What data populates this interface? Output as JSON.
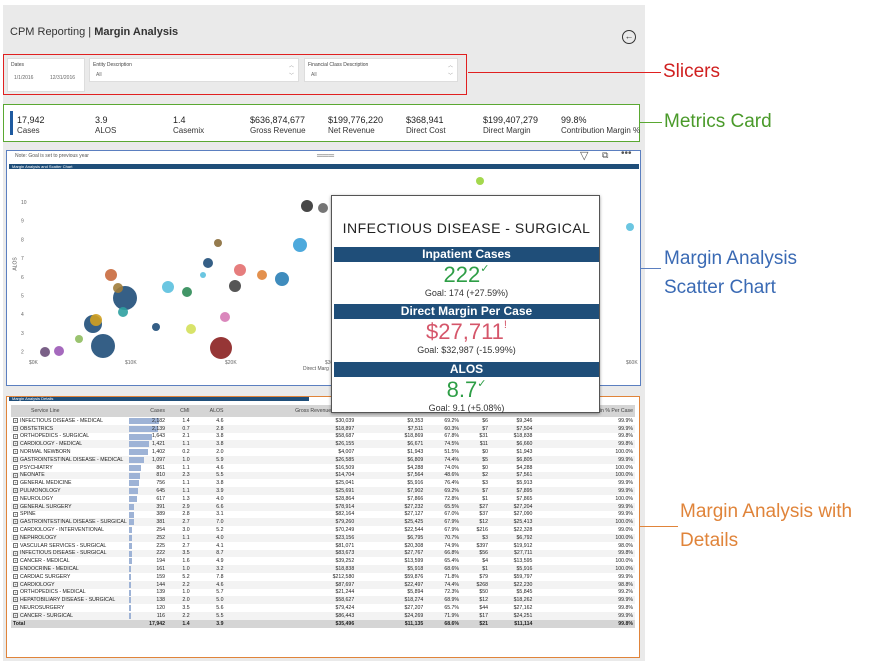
{
  "header": {
    "app": "CPM Reporting",
    "separator": "|",
    "page": "Margin Analysis"
  },
  "slicers": {
    "dates": {
      "title": "Dates",
      "start": "1/1/2016",
      "end": "12/31/2016"
    },
    "entity": {
      "title": "Entity Description",
      "value": "All"
    },
    "financial_class": {
      "title": "Financial Class Description",
      "value": "All"
    }
  },
  "metrics": [
    {
      "value": "17,942",
      "label": "Cases"
    },
    {
      "value": "3.9",
      "label": "ALOS"
    },
    {
      "value": "1.4",
      "label": "Casemix"
    },
    {
      "value": "$636,874,677",
      "label": "Gross Revenue"
    },
    {
      "value": "$199,776,220",
      "label": "Net Revenue"
    },
    {
      "value": "$368,941",
      "label": "Direct Cost"
    },
    {
      "value": "$199,407,279",
      "label": "Direct Margin"
    },
    {
      "value": "99.8%",
      "label": "Contribution Margin %"
    }
  ],
  "annotations": {
    "slicers": "Slicers",
    "metrics": "Metrics Card",
    "scatter_line1": "Margin Analysis",
    "scatter_line2": "Scatter Chart",
    "details_line1": "Margin Analysis with",
    "details_line2": "Details"
  },
  "scatter": {
    "note": "Note: Goal is set to previous year",
    "tab": "Margin Analysis and Scatter Chart",
    "xlabel": "Direct Marg",
    "xticks": [
      "$0K",
      "$10K",
      "$20K",
      "$30K",
      "$60K"
    ],
    "yticks": [
      "10",
      "9",
      "8",
      "7",
      "6",
      "5",
      "4",
      "3",
      "2"
    ],
    "ylabel": "ALOS"
  },
  "tooltip": {
    "title": "INFECTIOUS DISEASE - SURGICAL",
    "sections": [
      {
        "label": "Inpatient Cases",
        "value": "222",
        "mark": "✓",
        "goal": "Goal: 174 (+27.59%)",
        "color": "#2e9e46"
      },
      {
        "label": "Direct Margin Per Case",
        "value": "$27,711",
        "mark": "!",
        "goal": "Goal: $32,987 (-15.99%)",
        "color": "#d5566a"
      },
      {
        "label": "ALOS",
        "value": "8.7",
        "mark": "✓",
        "goal": "Goal: 9.1 (+5.08%)",
        "color": "#2e9e46"
      }
    ]
  },
  "details": {
    "tab": "Margin Analysis Details",
    "columns": [
      "Service Line",
      "Cases",
      "CMI",
      "ALOS",
      "Gross Revenue Per Case",
      "Net Revenue",
      "",
      "",
      "",
      "Margin % Per Case"
    ],
    "rows": [
      [
        "INFECTIOUS DISEASE - MEDICAL",
        "2,182",
        "1.4",
        "4.6",
        "$30,039",
        "$9,353",
        "69.2%",
        "$6",
        "$9,346",
        "99.9%"
      ],
      [
        "OBSTETRICS",
        "2,139",
        "0.7",
        "2.8",
        "$18,897",
        "$7,511",
        "60.3%",
        "$7",
        "$7,504",
        "99.9%"
      ],
      [
        "ORTHOPEDICS - SURGICAL",
        "1,643",
        "2.1",
        "3.8",
        "$58,687",
        "$18,869",
        "67.8%",
        "$31",
        "$18,838",
        "99.8%"
      ],
      [
        "CARDIOLOGY - MEDICAL",
        "1,421",
        "1.1",
        "3.8",
        "$26,155",
        "$6,671",
        "74.5%",
        "$11",
        "$6,660",
        "99.8%"
      ],
      [
        "NORMAL NEWBORN",
        "1,402",
        "0.2",
        "2.0",
        "$4,007",
        "$1,943",
        "51.5%",
        "$0",
        "$1,943",
        "100.0%"
      ],
      [
        "GASTROINTESTINAL DISEASE - MEDICAL",
        "1,097",
        "1.0",
        "5.9",
        "$26,585",
        "$6,809",
        "74.4%",
        "$5",
        "$6,805",
        "99.9%"
      ],
      [
        "PSYCHIATRY",
        "861",
        "1.1",
        "4.6",
        "$16,509",
        "$4,288",
        "74.0%",
        "$0",
        "$4,288",
        "100.0%"
      ],
      [
        "NEONATE",
        "810",
        "2.3",
        "5.5",
        "$14,704",
        "$7,564",
        "48.6%",
        "$2",
        "$7,561",
        "100.0%"
      ],
      [
        "GENERAL MEDICINE",
        "756",
        "1.1",
        "3.8",
        "$25,041",
        "$5,916",
        "76.4%",
        "$3",
        "$5,913",
        "99.9%"
      ],
      [
        "PULMONOLOGY",
        "645",
        "1.1",
        "3.9",
        "$25,691",
        "$7,902",
        "69.2%",
        "$7",
        "$7,895",
        "99.9%"
      ],
      [
        "NEUROLOGY",
        "617",
        "1.3",
        "4.0",
        "$28,864",
        "$7,866",
        "72.8%",
        "$1",
        "$7,865",
        "100.0%"
      ],
      [
        "GENERAL SURGERY",
        "391",
        "2.9",
        "6.6",
        "$78,914",
        "$27,232",
        "65.5%",
        "$27",
        "$27,204",
        "99.9%"
      ],
      [
        "SPINE",
        "389",
        "2.8",
        "3.1",
        "$82,164",
        "$27,127",
        "67.0%",
        "$37",
        "$27,090",
        "99.9%"
      ],
      [
        "GASTROINTESTINAL DISEASE - SURGICAL",
        "381",
        "2.7",
        "7.0",
        "$79,260",
        "$25,425",
        "67.9%",
        "$12",
        "$25,413",
        "100.0%"
      ],
      [
        "CARDIOLOGY - INTERVENTIONAL",
        "254",
        "3.0",
        "5.2",
        "$70,249",
        "$22,544",
        "67.9%",
        "$216",
        "$22,328",
        "99.0%"
      ],
      [
        "NEPHROLOGY",
        "252",
        "1.1",
        "4.0",
        "$23,156",
        "$6,795",
        "70.7%",
        "$3",
        "$6,792",
        "100.0%"
      ],
      [
        "VASCULAR SERVICES - SURGICAL",
        "225",
        "2.7",
        "4.1",
        "$81,071",
        "$20,308",
        "74.9%",
        "$397",
        "$19,912",
        "98.0%"
      ],
      [
        "INFECTIOUS DISEASE - SURGICAL",
        "222",
        "3.5",
        "8.7",
        "$83,673",
        "$27,767",
        "66.8%",
        "$56",
        "$27,711",
        "99.8%"
      ],
      [
        "CANCER - MEDICAL",
        "194",
        "1.6",
        "4.9",
        "$39,252",
        "$13,599",
        "65.4%",
        "$4",
        "$13,595",
        "100.0%"
      ],
      [
        "ENDOCRINE - MEDICAL",
        "161",
        "1.0",
        "3.2",
        "$18,838",
        "$5,918",
        "68.6%",
        "$1",
        "$5,916",
        "100.0%"
      ],
      [
        "CARDIAC SURGERY",
        "159",
        "5.2",
        "7.8",
        "$212,580",
        "$59,876",
        "71.8%",
        "$79",
        "$59,797",
        "99.9%"
      ],
      [
        "CARDIOLOGY",
        "144",
        "2.2",
        "4.6",
        "$87,697",
        "$22,497",
        "74.4%",
        "$268",
        "$22,230",
        "98.8%"
      ],
      [
        "ORTHOPEDICS - MEDICAL",
        "139",
        "1.0",
        "5.7",
        "$21,244",
        "$5,894",
        "72.3%",
        "$50",
        "$5,845",
        "99.2%"
      ],
      [
        "HEPATOBILIARY DISEASE - SURGICAL",
        "138",
        "2.0",
        "5.0",
        "$58,627",
        "$18,274",
        "68.9%",
        "$12",
        "$18,262",
        "99.9%"
      ],
      [
        "NEUROSURGERY",
        "120",
        "3.5",
        "5.6",
        "$79,424",
        "$27,207",
        "65.7%",
        "$44",
        "$27,162",
        "99.8%"
      ],
      [
        "CANCER - SURGICAL",
        "116",
        "2.2",
        "5.5",
        "$86,443",
        "$24,269",
        "71.9%",
        "$17",
        "$24,251",
        "99.9%"
      ]
    ],
    "total": [
      "Total",
      "17,942",
      "1.4",
      "3.9",
      "$35,496",
      "$11,135",
      "68.6%",
      "$21",
      "$11,114",
      "99.8%"
    ]
  }
}
